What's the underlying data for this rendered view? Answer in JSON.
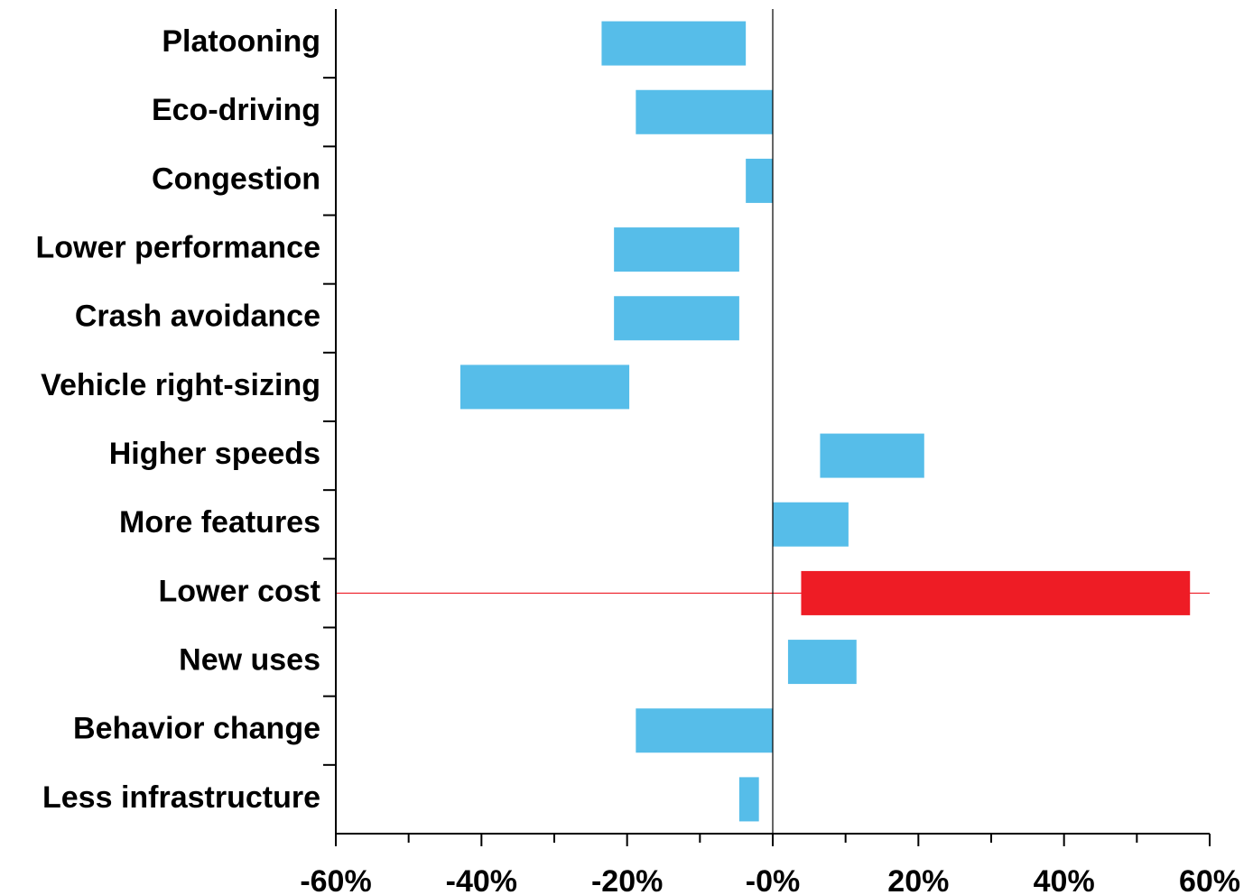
{
  "chart_data": {
    "type": "bar",
    "orientation": "horizontal",
    "bar_style": "floating-range",
    "categories": [
      "Platooning",
      "Eco-driving",
      "Congestion",
      "Lower performance",
      "Crash avoidance",
      "Vehicle right-sizing",
      "Higher speeds",
      "More features",
      "Lower cost",
      "New uses",
      "Behavior change",
      "Less infrastructure"
    ],
    "ranges": [
      [
        -23.5,
        -3.7
      ],
      [
        -18.8,
        0
      ],
      [
        -3.7,
        0
      ],
      [
        -21.8,
        -4.6
      ],
      [
        -21.8,
        -4.6
      ],
      [
        -42.9,
        -19.7
      ],
      [
        6.5,
        20.8
      ],
      [
        0,
        10.4
      ],
      [
        3.9,
        57.3
      ],
      [
        2.1,
        11.5
      ],
      [
        -18.8,
        0
      ],
      [
        -4.6,
        -1.9
      ]
    ],
    "highlight": "Lower cost",
    "xticks": [
      "-60%",
      "-40%",
      "-20%",
      "-0%",
      "20%",
      "40%",
      "60%"
    ],
    "xlim": [
      -60,
      60
    ],
    "xunit": "%",
    "grid": false,
    "colors": {
      "bar": "#56bde9",
      "highlight_bar": "#ee1c25",
      "highlight_line": "#ee1c25",
      "axis": "#000000"
    }
  }
}
